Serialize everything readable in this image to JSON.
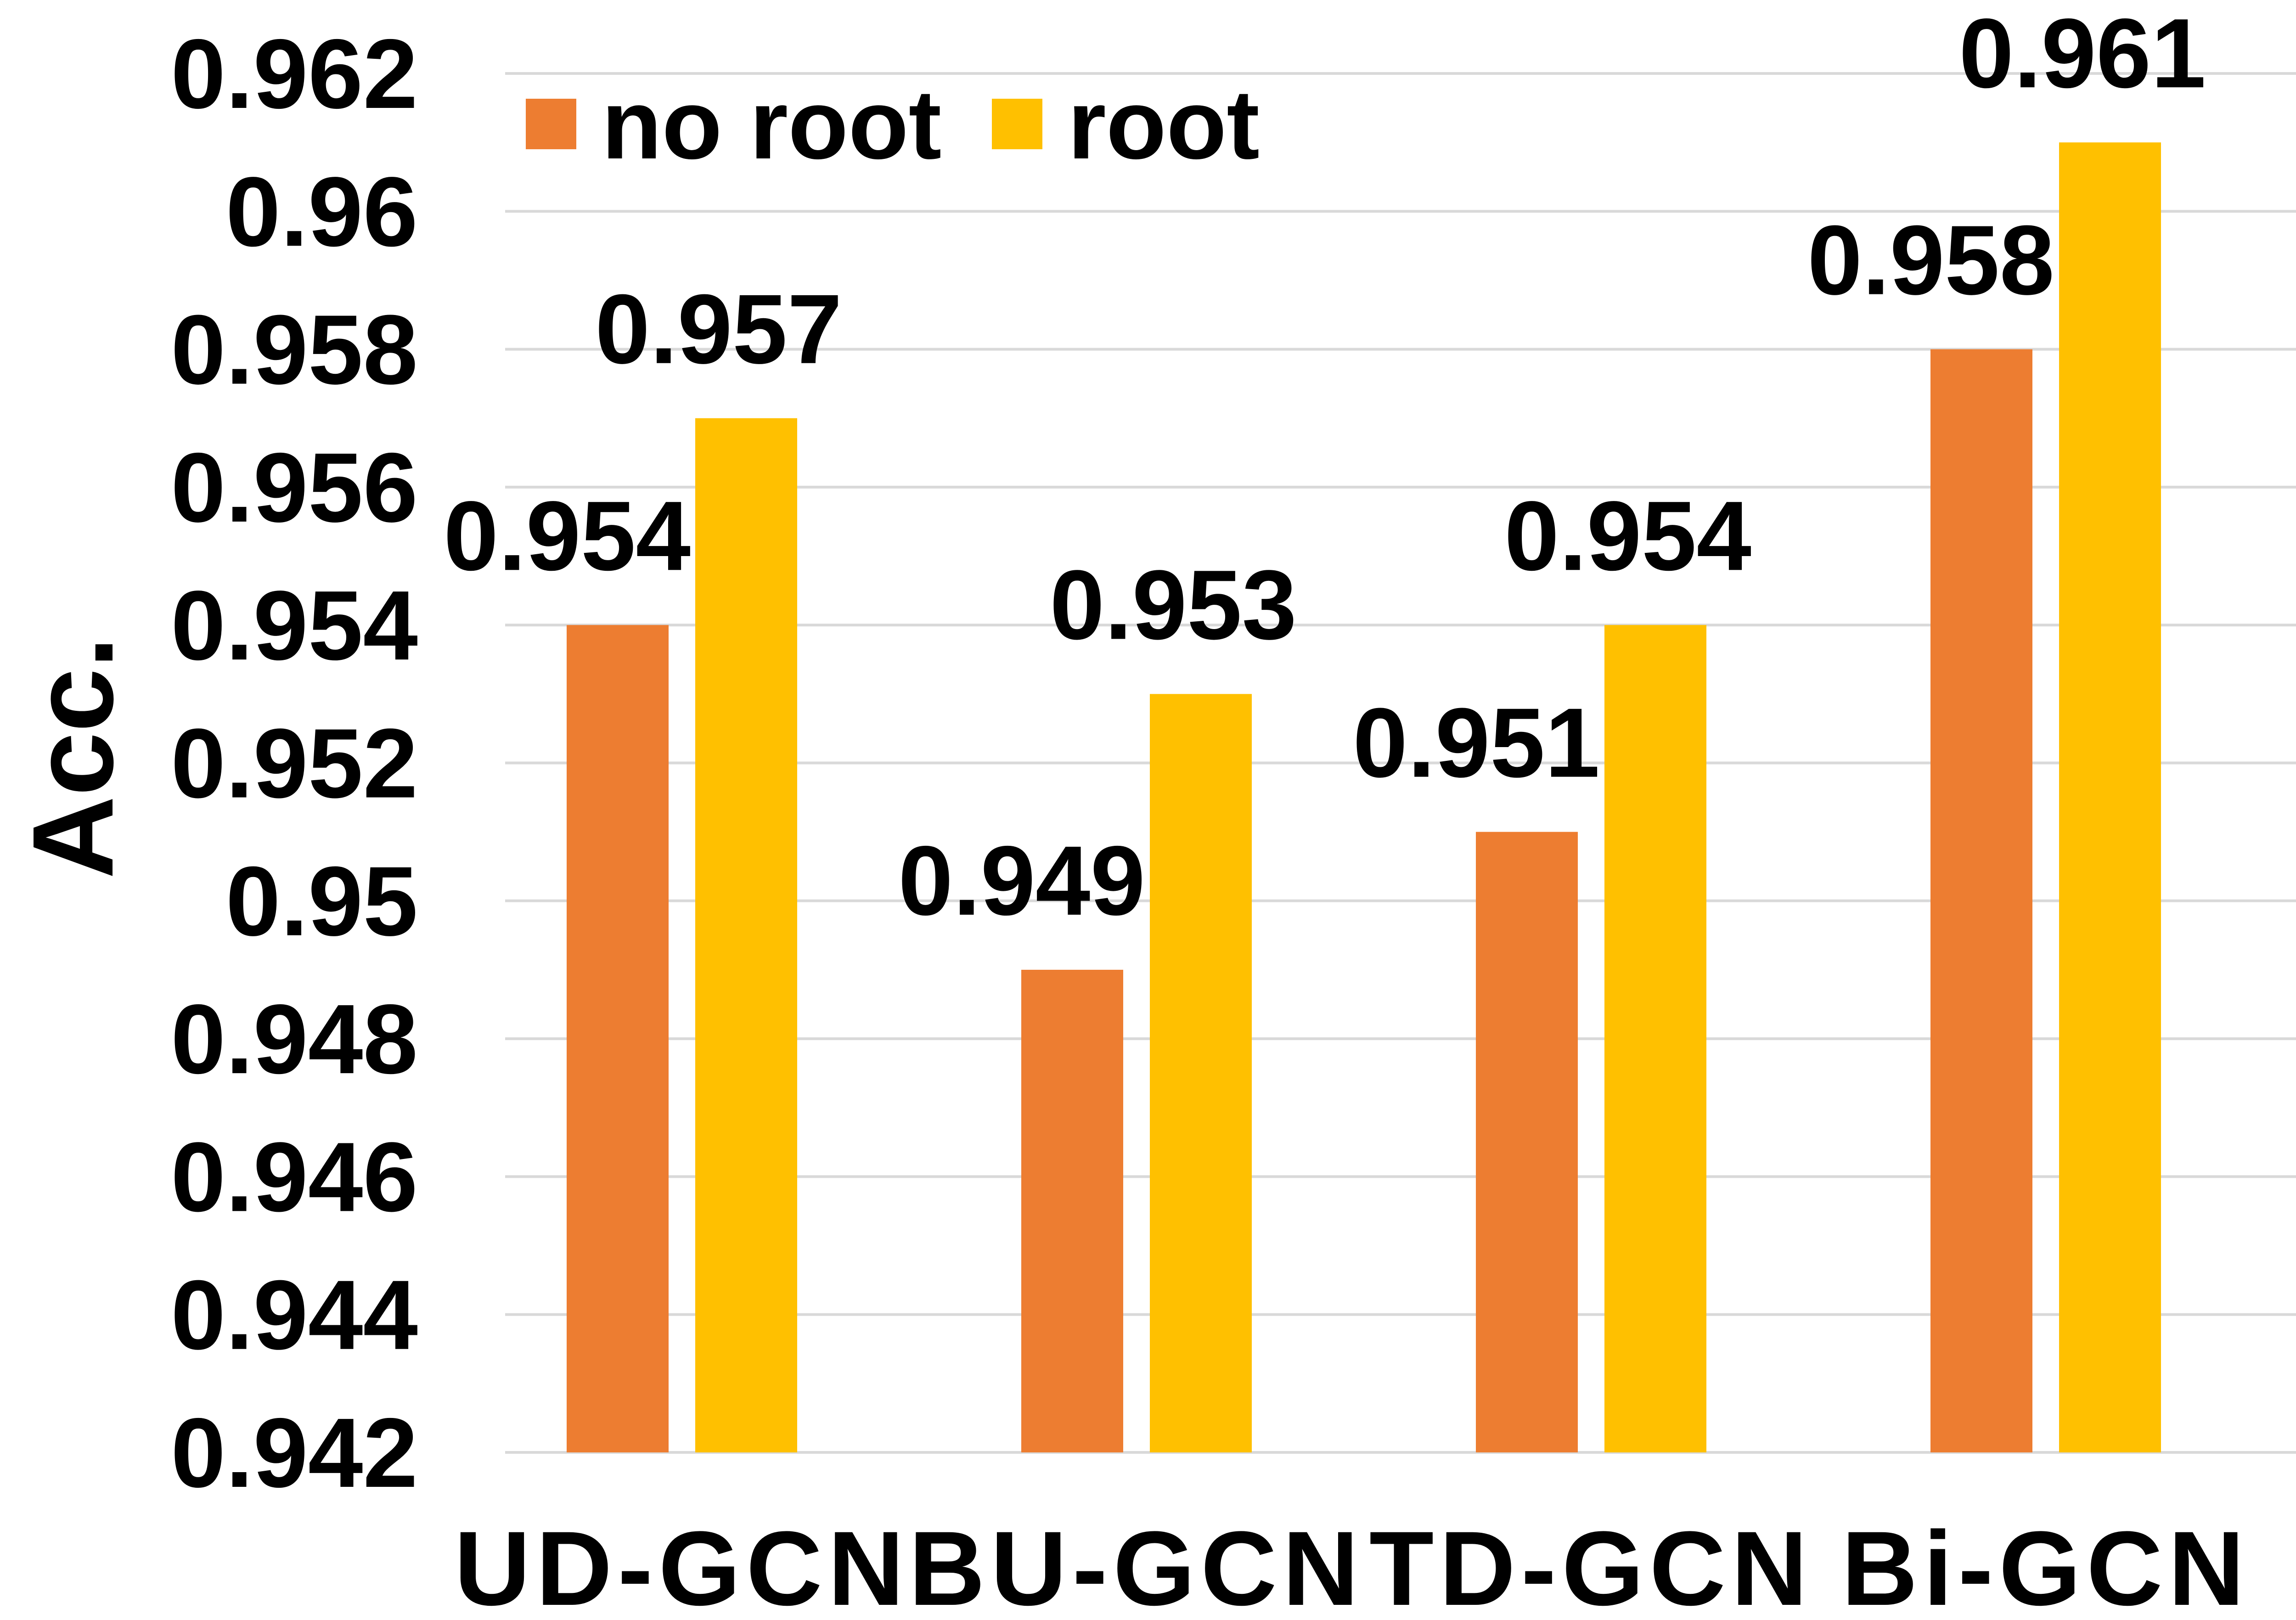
{
  "chart_data": {
    "type": "bar",
    "categories": [
      "UD-GCN",
      "BU-GCN",
      "TD-GCN",
      "Bi-GCN"
    ],
    "series": [
      {
        "name": "no root",
        "values": [
          0.954,
          0.949,
          0.951,
          0.958
        ],
        "color": "#ED7D31"
      },
      {
        "name": "root",
        "values": [
          0.957,
          0.953,
          0.954,
          0.961
        ],
        "color": "#FFC000"
      }
    ],
    "data_labels": [
      [
        "0.954",
        "0.949",
        "0.951",
        "0.958"
      ],
      [
        "0.957",
        "0.953",
        "0.954",
        "0.961"
      ]
    ],
    "ylabel": "Acc.",
    "ylim": [
      0.942,
      0.962
    ],
    "yticks": [
      0.942,
      0.944,
      0.946,
      0.948,
      0.95,
      0.952,
      0.954,
      0.956,
      0.958,
      0.96,
      0.962
    ],
    "ytick_labels": [
      "0.942",
      "0.944",
      "0.946",
      "0.948",
      "0.95",
      "0.952",
      "0.954",
      "0.956",
      "0.958",
      "0.96",
      "0.962"
    ],
    "grid": true,
    "grid_color": "#D9D9D9",
    "legend_position": "top-left"
  }
}
